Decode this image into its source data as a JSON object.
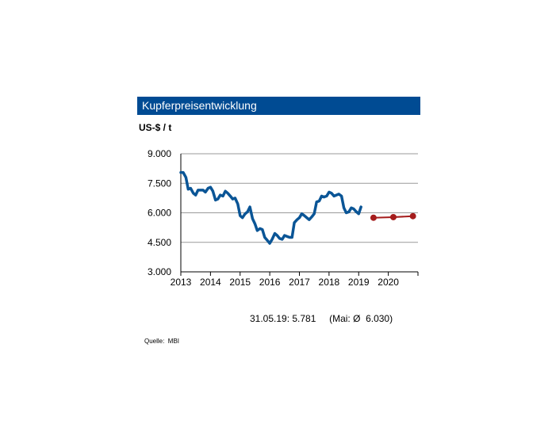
{
  "title": "Kupferpreisentwicklung",
  "unit_label": "US-$ / t",
  "footnote": "31.05.19: 5.781     (Mai: Ø  6.030)",
  "source": "Quelle:  MBI",
  "colors": {
    "title_bg": "#004b93",
    "history": "#0a5596",
    "forecast": "#a51c1c"
  },
  "chart_data": {
    "type": "line",
    "title": "Kupferpreisentwicklung",
    "ylabel": "US-$ / t",
    "xlim": [
      2013,
      2021
    ],
    "ylim": [
      3000,
      9000
    ],
    "y_ticks": [
      3000,
      4500,
      6000,
      7500,
      9000
    ],
    "y_tick_labels": [
      "3.000",
      "4.500",
      "6.000",
      "7.500",
      "9.000"
    ],
    "x_ticks": [
      2013,
      2014,
      2015,
      2016,
      2017,
      2018,
      2019,
      2020
    ],
    "x_tick_labels": [
      "2013",
      "2014",
      "2015",
      "2016",
      "2017",
      "2018",
      "2019",
      "2020"
    ],
    "grid": "horizontal",
    "series": [
      {
        "kind": "history",
        "x": [
          2013.0,
          2013.08,
          2013.17,
          2013.25,
          2013.33,
          2013.42,
          2013.5,
          2013.58,
          2013.67,
          2013.75,
          2013.83,
          2013.92,
          2014.0,
          2014.08,
          2014.17,
          2014.25,
          2014.33,
          2014.42,
          2014.5,
          2014.58,
          2014.67,
          2014.75,
          2014.83,
          2014.92,
          2015.0,
          2015.08,
          2015.17,
          2015.25,
          2015.33,
          2015.42,
          2015.5,
          2015.58,
          2015.67,
          2015.75,
          2015.83,
          2015.92,
          2016.0,
          2016.08,
          2016.17,
          2016.25,
          2016.33,
          2016.42,
          2016.5,
          2016.58,
          2016.67,
          2016.75,
          2016.83,
          2016.92,
          2017.0,
          2017.08,
          2017.17,
          2017.25,
          2017.33,
          2017.42,
          2017.5,
          2017.58,
          2017.67,
          2017.75,
          2017.83,
          2017.92,
          2018.0,
          2018.08,
          2018.17,
          2018.25,
          2018.33,
          2018.42,
          2018.5,
          2018.58,
          2018.67,
          2018.75,
          2018.83,
          2018.92,
          2019.0,
          2019.08
        ],
        "values": [
          8050,
          8050,
          7800,
          7200,
          7250,
          7000,
          6900,
          7150,
          7150,
          7150,
          7050,
          7250,
          7300,
          7100,
          6650,
          6700,
          6900,
          6850,
          7100,
          7000,
          6850,
          6700,
          6750,
          6450,
          5850,
          5750,
          5950,
          6050,
          6300,
          5700,
          5450,
          5100,
          5200,
          5150,
          4750,
          4600,
          4450,
          4650,
          4950,
          4850,
          4700,
          4650,
          4850,
          4800,
          4750,
          4750,
          5500,
          5650,
          5750,
          5950,
          5850,
          5750,
          5650,
          5800,
          5950,
          6550,
          6600,
          6850,
          6800,
          6850,
          7050,
          7000,
          6850,
          6900,
          6950,
          6850,
          6250,
          6000,
          6050,
          6250,
          6200,
          6050,
          5950,
          6300
        ]
      },
      {
        "kind": "forecast",
        "x": [
          2019.5,
          2020.17,
          2020.83
        ],
        "values": [
          5750,
          5780,
          5830
        ]
      }
    ]
  }
}
